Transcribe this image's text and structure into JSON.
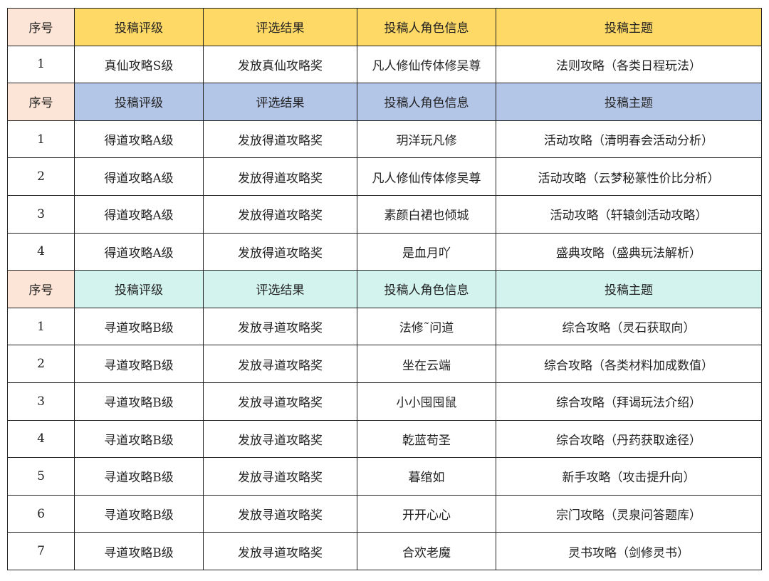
{
  "header_labels": [
    "序号",
    "投稿评级",
    "评选结果",
    "投稿人角色信息",
    "投稿主题"
  ],
  "colors": {
    "section_s": "#FFD966",
    "section_a": "#B4C6E7",
    "section_b": "#D3F3EE",
    "index_header": "#FCE4D6"
  },
  "sections": [
    {
      "rows": [
        [
          "1",
          "真仙攻略S级",
          "发放真仙攻略奖",
          "凡人修仙传体修吴尊",
          "法则攻略（各类日程玩法）"
        ]
      ]
    },
    {
      "rows": [
        [
          "1",
          "得道攻略A级",
          "发放得道攻略奖",
          "玥洋玩凡修",
          "活动攻略（清明春会活动分析）"
        ],
        [
          "2",
          "得道攻略A级",
          "发放得道攻略奖",
          "凡人修仙传体修吴尊",
          "活动攻略（云梦秘篆性价比分析）"
        ],
        [
          "3",
          "得道攻略A级",
          "发放得道攻略奖",
          "素颜白裙也倾城",
          "活动攻略（轩辕剑活动攻略）"
        ],
        [
          "4",
          "得道攻略A级",
          "发放得道攻略奖",
          "是血月吖",
          "盛典攻略（盛典玩法解析）"
        ]
      ]
    },
    {
      "rows": [
        [
          "1",
          "寻道攻略B级",
          "发放寻道攻略奖",
          "法修˜问道",
          "综合攻略（灵石获取向）"
        ],
        [
          "2",
          "寻道攻略B级",
          "发放寻道攻略奖",
          "坐在云端",
          "综合攻略（各类材料加成数值）"
        ],
        [
          "3",
          "寻道攻略B级",
          "发放寻道攻略奖",
          "小小囤囤鼠",
          "综合攻略（拜谒玩法介绍）"
        ],
        [
          "4",
          "寻道攻略B级",
          "发放寻道攻略奖",
          "乾蓝苟圣",
          "综合攻略（丹药获取途径）"
        ],
        [
          "5",
          "寻道攻略B级",
          "发放寻道攻略奖",
          "暮绾如",
          "新手攻略（攻击提升向）"
        ],
        [
          "6",
          "寻道攻略B级",
          "发放寻道攻略奖",
          "开开心心",
          "宗门攻略（灵泉问答题库）"
        ],
        [
          "7",
          "寻道攻略B级",
          "发放寻道攻略奖",
          "合欢老魔",
          "灵书攻略（剑修灵书）"
        ]
      ]
    }
  ]
}
